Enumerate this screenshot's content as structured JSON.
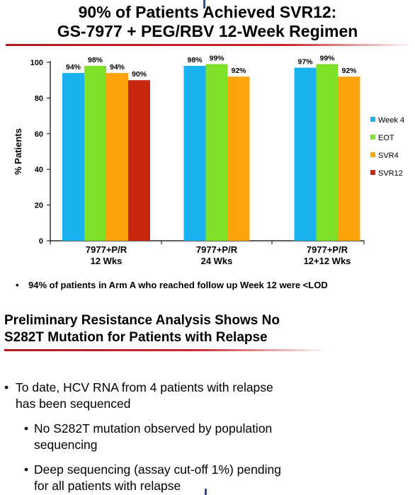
{
  "header": {
    "title_line1": "90% of Patients Achieved SVR12:",
    "title_line2": "GS-7977 + PEG/RBV 12-Week Regimen"
  },
  "chart_data": {
    "type": "bar",
    "ylabel": "% Patients",
    "xlabel": "",
    "ylim": [
      0,
      100
    ],
    "yticks": [
      0,
      20,
      40,
      60,
      80,
      100
    ],
    "grid": false,
    "legend_position": "right",
    "categories": [
      {
        "line1": "7977+P/R",
        "line2": "12 Wks"
      },
      {
        "line1": "7977+P/R",
        "line2": "24 Wks"
      },
      {
        "line1": "7977+P/R",
        "line2": "12+12 Wks"
      }
    ],
    "series": [
      {
        "name": "Week 4",
        "color": "#1ab3f0",
        "values": [
          94,
          98,
          97
        ],
        "labels": [
          "94%",
          "98%",
          "97%"
        ]
      },
      {
        "name": "EOT",
        "color": "#7fe02a",
        "values": [
          98,
          99,
          99
        ],
        "labels": [
          "98%",
          "99%",
          "99%"
        ]
      },
      {
        "name": "SVR4",
        "color": "#ffa30a",
        "values": [
          94,
          92,
          92
        ],
        "labels": [
          "94%",
          "92%",
          "92%"
        ]
      },
      {
        "name": "SVR12",
        "color": "#c8280f",
        "values": [
          90,
          null,
          null
        ],
        "labels": [
          "90%",
          null,
          null
        ]
      }
    ]
  },
  "note": {
    "bullet": "•",
    "text": "94% of patients in Arm A who reached follow up Week 12 were <LOD"
  },
  "section": {
    "title_line1": "Preliminary Resistance Analysis Shows No",
    "title_line2": "S282T Mutation for Patients with Relapse"
  },
  "bullets": {
    "main": {
      "mark": "•",
      "line1": "To date, HCV RNA from 4 patients with relapse",
      "line2": "has been sequenced"
    },
    "sub": [
      {
        "mark": "•",
        "line1": "No S282T mutation observed by population",
        "line2": "sequencing"
      },
      {
        "mark": "•",
        "line1": "Deep sequencing (assay cut-off 1%) pending",
        "line2": "for all patients with relapse"
      }
    ]
  }
}
